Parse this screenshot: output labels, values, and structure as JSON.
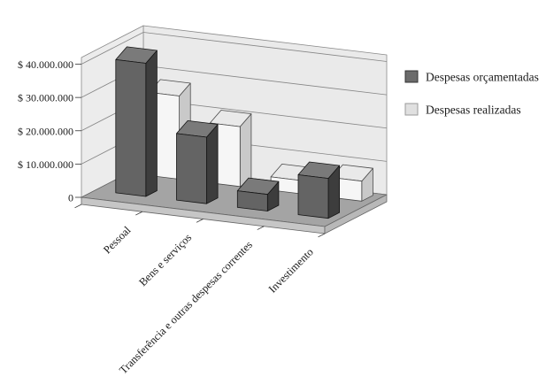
{
  "chart_data": {
    "type": "bar",
    "projection": "3d-column",
    "categories": [
      "Pessoal",
      "Bens e serviços",
      "Transferência e outras despesas correntes",
      "Investimento"
    ],
    "series": [
      {
        "name": "Despesas orçamentadas",
        "values": [
          40000000,
          20000000,
          5000000,
          12000000
        ],
        "color_front": "#646464",
        "color_side": "#3d3d3d",
        "color_top": "#7a7a7a"
      },
      {
        "name": "Despesas realizadas",
        "values": [
          25000000,
          18000000,
          4000000,
          6000000
        ],
        "color_front": "#f6f6f6",
        "color_side": "#c9c9c9",
        "color_top": "#e9e9e9"
      }
    ],
    "ylabel": "",
    "xlabel": "",
    "title": "",
    "y_axis": {
      "min": 0,
      "max": 42000000,
      "major_unit": 10000000,
      "tick_labels": [
        "0",
        "$ 10.000.000",
        "$ 20.000.000",
        "$ 30.000.000",
        "$ 40.000.000"
      ]
    },
    "legend_position": "right",
    "grid": true,
    "colors": {
      "wall": "#eaeaea",
      "left_wall": "#ececec",
      "floor": "#a4a4a4",
      "floor_side_front": "#c6c6c6",
      "floor_side_right": "#b8b8b8",
      "gridline": "#868686",
      "outline": "#8a8a8a"
    }
  },
  "legend": {
    "items": [
      {
        "label": "Despesas orçamentadas",
        "swatch_color": "#6b6b6b",
        "swatch_border": "#333333"
      },
      {
        "label": "Despesas realizadas",
        "swatch_color": "#e0e0e0",
        "swatch_border": "#9a9a9a"
      }
    ]
  }
}
